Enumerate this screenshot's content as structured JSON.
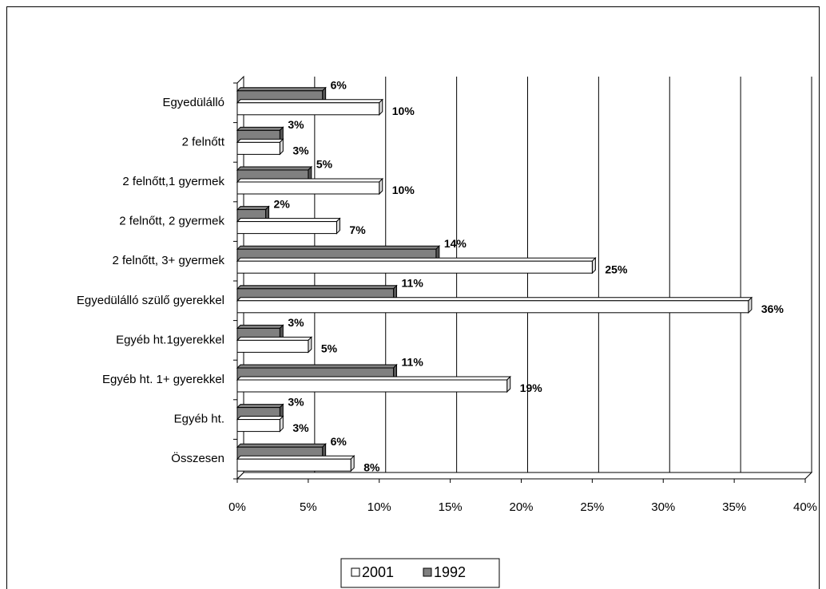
{
  "chart_data": {
    "type": "bar",
    "orientation": "horizontal",
    "categories": [
      "Egyedülálló",
      "2 felnőtt",
      "2 felnőtt,1 gyermek",
      "2 felnőtt, 2 gyermek",
      "2 felnőtt, 3+ gyermek",
      "Egyedülálló szülő gyerekkel",
      "Egyéb ht.1gyerekkel",
      "Egyéb ht. 1+ gyerekkel",
      "Egyéb ht.",
      "Összesen"
    ],
    "series": [
      {
        "name": "1992",
        "color": "#808080",
        "values": [
          6,
          3,
          5,
          2,
          14,
          11,
          3,
          11,
          3,
          6
        ],
        "value_labels": [
          "6%",
          "3%",
          "5%",
          "2%",
          "14%",
          "11%",
          "3%",
          "11%",
          "3%",
          "6%"
        ]
      },
      {
        "name": "2001",
        "color": "#ffffff",
        "values": [
          10,
          3,
          10,
          7,
          25,
          36,
          5,
          19,
          3,
          8
        ],
        "value_labels": [
          "10%",
          "3%",
          "10%",
          "7%",
          "25%",
          "36%",
          "5%",
          "19%",
          "3%",
          "8%"
        ]
      }
    ],
    "xlim": [
      0,
      40
    ],
    "xticks": [
      {
        "value": 0,
        "label": "0%"
      },
      {
        "value": 5,
        "label": "5%"
      },
      {
        "value": 10,
        "label": "10%"
      },
      {
        "value": 15,
        "label": "15%"
      },
      {
        "value": 20,
        "label": "20%"
      },
      {
        "value": 25,
        "label": "25%"
      },
      {
        "value": 30,
        "label": "30%"
      },
      {
        "value": 35,
        "label": "35%"
      },
      {
        "value": 40,
        "label": "40%"
      }
    ],
    "grid": true,
    "legend": "bottom"
  }
}
